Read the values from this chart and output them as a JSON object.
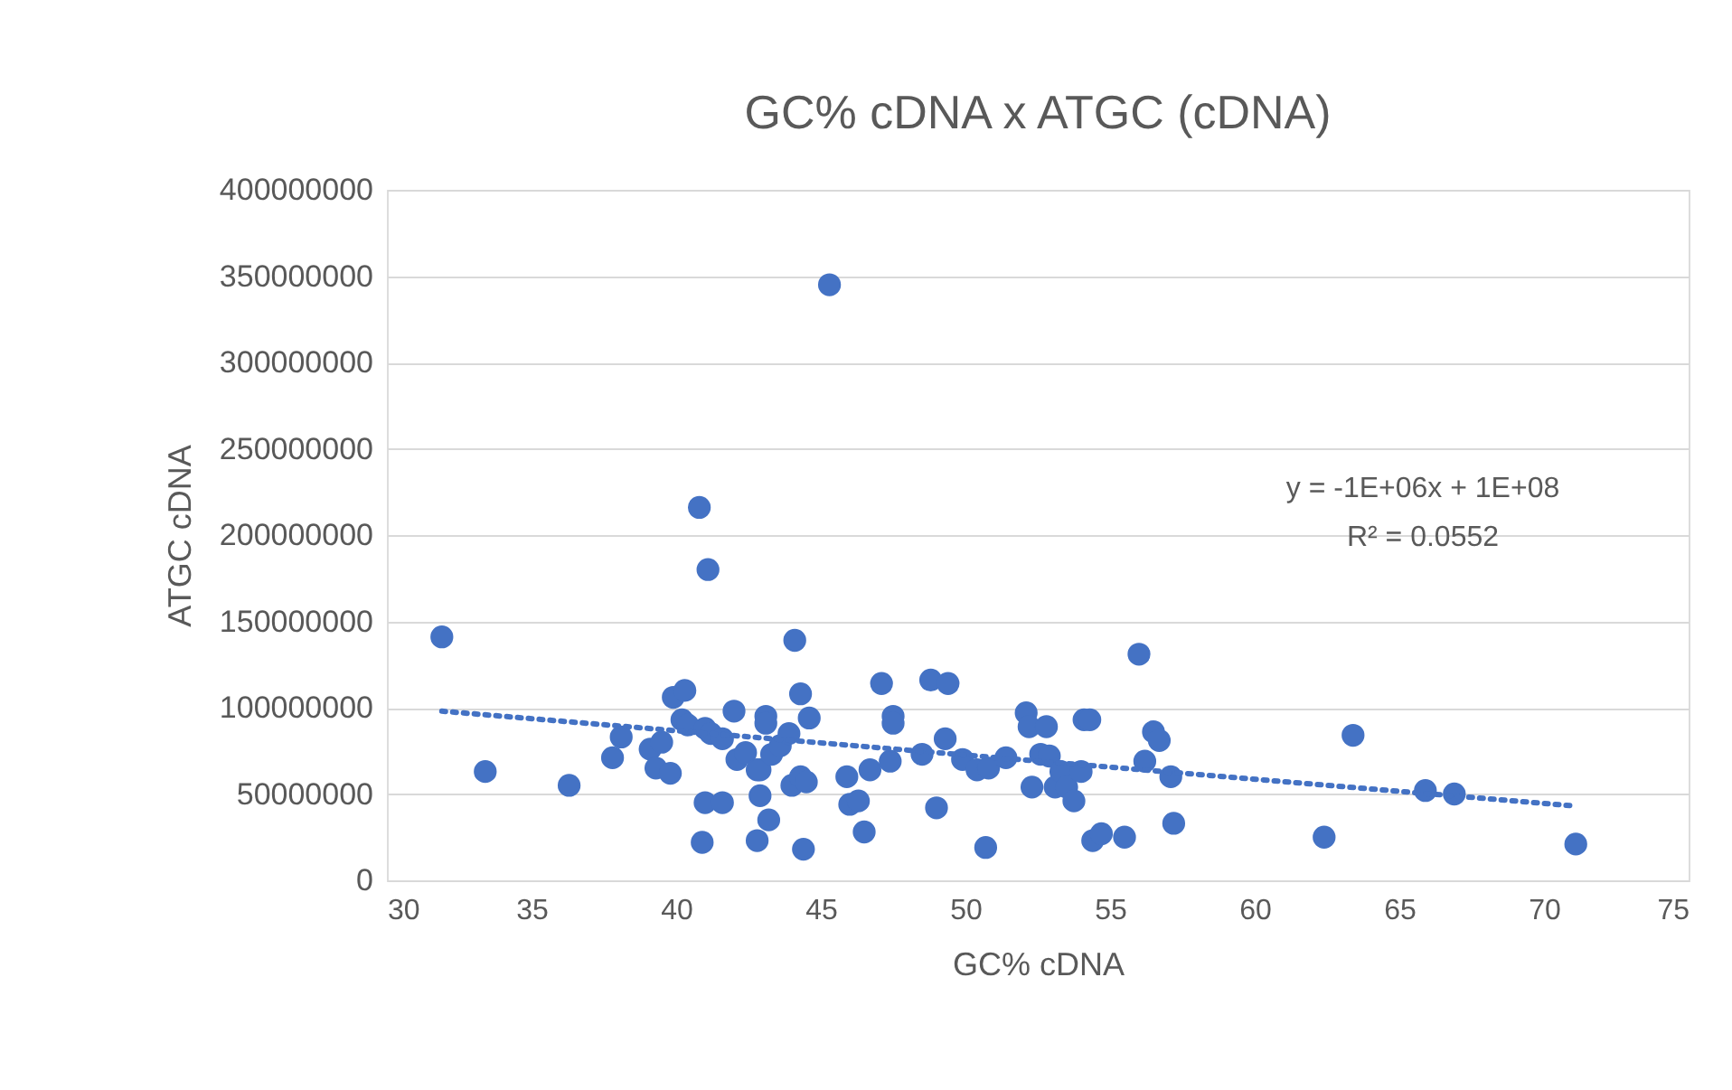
{
  "chart_data": {
    "type": "scatter",
    "title": "GC% cDNA x ATGC (cDNA)",
    "xlabel": "GC% cDNA",
    "ylabel": "ATGC cDNA",
    "xlim": [
      30,
      75
    ],
    "xticks": [
      30,
      35,
      40,
      45,
      50,
      55,
      60,
      65,
      70,
      75
    ],
    "ylim": [
      0,
      400000000
    ],
    "yticks": [
      0,
      50000000,
      100000000,
      150000000,
      200000000,
      250000000,
      300000000,
      350000000,
      400000000
    ],
    "grid": "y",
    "marker": "circle",
    "annotations": [
      "y = -1E+06x + 1E+08",
      "R² = 0.0552"
    ],
    "series": [
      {
        "color": "#4472c4",
        "x": [
          31.9,
          33.4,
          36.3,
          37.8,
          38.1,
          39.1,
          39.3,
          39.5,
          39.8,
          39.9,
          40.3,
          40.2,
          40.4,
          40.9,
          40.8,
          41.1,
          41.0,
          41.0,
          41.2,
          41.6,
          41.6,
          42.0,
          42.1,
          42.4,
          42.8,
          42.8,
          42.9,
          42.9,
          43.1,
          43.1,
          43.2,
          43.3,
          43.6,
          43.9,
          44.0,
          44.1,
          44.3,
          44.3,
          44.4,
          44.6,
          44.5,
          45.3,
          45.9,
          46.0,
          46.3,
          46.5,
          46.7,
          47.1,
          47.5,
          47.5,
          47.4,
          48.5,
          48.8,
          49.0,
          49.4,
          49.3,
          49.9,
          50.4,
          50.8,
          50.7,
          51.4,
          52.1,
          52.2,
          52.3,
          52.6,
          52.8,
          52.9,
          53.1,
          53.3,
          53.5,
          53.75,
          54.0,
          54.1,
          54.3,
          54.4,
          54.7,
          55.5,
          56.0,
          56.2,
          56.5,
          56.7,
          57.1,
          57.2,
          62.4,
          63.4,
          65.9,
          66.9,
          71.1
        ],
        "values": [
          141000000,
          63000000,
          55000000,
          71000000,
          83000000,
          76000000,
          65000000,
          80000000,
          62000000,
          106000000,
          110000000,
          93000000,
          90000000,
          22000000,
          216000000,
          180000000,
          45000000,
          88000000,
          85000000,
          45000000,
          82000000,
          98000000,
          70000000,
          74000000,
          23000000,
          64000000,
          49000000,
          64000000,
          95000000,
          91000000,
          35000000,
          73000000,
          78000000,
          85000000,
          55000000,
          139000000,
          108000000,
          60000000,
          18000000,
          94000000,
          57000000,
          345000000,
          60000000,
          44000000,
          46000000,
          28000000,
          64000000,
          114000000,
          95000000,
          91000000,
          69000000,
          73000000,
          116000000,
          42000000,
          114000000,
          82000000,
          70000000,
          64000000,
          65000000,
          19000000,
          71000000,
          97000000,
          89000000,
          54000000,
          73000000,
          89000000,
          72000000,
          54000000,
          63000000,
          54000000,
          46000000,
          63000000,
          93000000,
          93000000,
          23000000,
          27000000,
          25000000,
          131000000,
          69000000,
          86000000,
          81000000,
          60000000,
          33000000,
          25000000,
          84000000,
          52000000,
          50000000,
          21000000
        ]
      },
      {
        "type": "line",
        "color": "#4472c4",
        "line_style": "dotted",
        "marker": "none",
        "x": [
          31.9,
          71.1
        ],
        "values": [
          98000000,
          43000000
        ]
      }
    ]
  }
}
